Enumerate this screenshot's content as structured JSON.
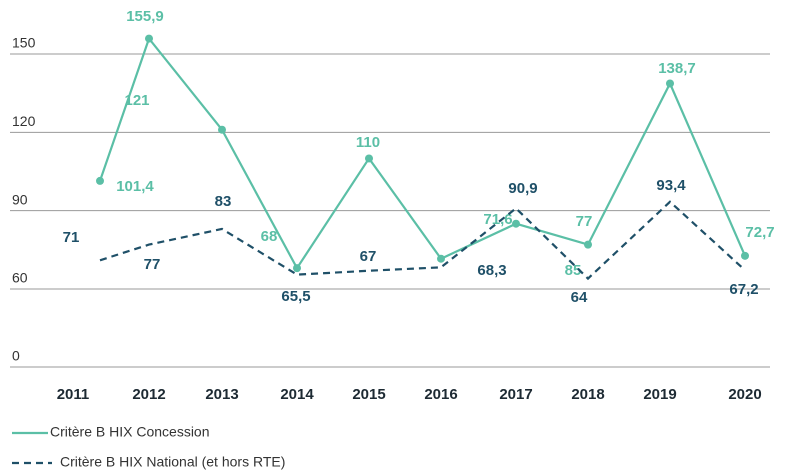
{
  "chart_data": {
    "type": "line",
    "categories": [
      "2011",
      "2012",
      "2013",
      "2014",
      "2015",
      "2016",
      "2017",
      "2018",
      "2019",
      "2020"
    ],
    "ylim": [
      0,
      150
    ],
    "y_break": [
      0,
      60
    ],
    "yticks": [
      0,
      60,
      90,
      120,
      150
    ],
    "grid": true,
    "series": [
      {
        "name": "Critère B HIX Concession",
        "color": "#5bbfa6",
        "style": "solid",
        "markers": true,
        "values": [
          101.4,
          155.9,
          121,
          68,
          110,
          71.6,
          85,
          77,
          138.7,
          72.7
        ],
        "value_labels": [
          "101,4",
          "155,9",
          "121",
          "68",
          "110",
          "71,6",
          "85",
          "77",
          "138,7",
          "72,7"
        ]
      },
      {
        "name": "Critère B HIX National (et hors RTE)",
        "color": "#1f5068",
        "style": "dashed",
        "markers": false,
        "values": [
          71,
          77,
          83,
          65.5,
          67,
          68.3,
          90.9,
          64,
          93.4,
          67.2
        ],
        "value_labels": [
          "71",
          "77",
          "83",
          "65,5",
          "67",
          "68,3",
          "90,9",
          "64",
          "93,4",
          "67,2"
        ]
      }
    ]
  }
}
